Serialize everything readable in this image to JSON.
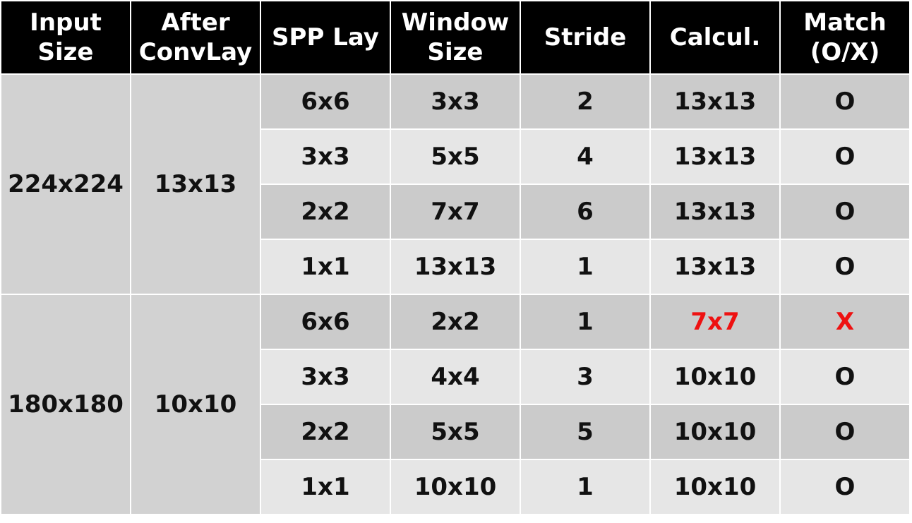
{
  "header": {
    "columns": [
      [
        "Input",
        "Size"
      ],
      [
        "After",
        "ConvLay"
      ],
      [
        "SPP Lay"
      ],
      [
        "Window",
        "Size"
      ],
      [
        "Stride"
      ],
      [
        "Calcul."
      ],
      [
        "Match",
        "(O/X)"
      ]
    ]
  },
  "groups": [
    {
      "input_size": "224x224",
      "after_convlay": "13x13",
      "rows": [
        {
          "spp_lay": "6x6",
          "window_size": "3x3",
          "stride": "2",
          "calcul": "13x13",
          "match": "O"
        },
        {
          "spp_lay": "3x3",
          "window_size": "5x5",
          "stride": "4",
          "calcul": "13x13",
          "match": "O"
        },
        {
          "spp_lay": "2x2",
          "window_size": "7x7",
          "stride": "6",
          "calcul": "13x13",
          "match": "O"
        },
        {
          "spp_lay": "1x1",
          "window_size": "13x13",
          "stride": "1",
          "calcul": "13x13",
          "match": "O"
        }
      ]
    },
    {
      "input_size": "180x180",
      "after_convlay": "10x10",
      "rows": [
        {
          "spp_lay": "6x6",
          "window_size": "2x2",
          "stride": "1",
          "calcul": "7x7",
          "match": "X"
        },
        {
          "spp_lay": "3x3",
          "window_size": "4x4",
          "stride": "3",
          "calcul": "10x10",
          "match": "O"
        },
        {
          "spp_lay": "2x2",
          "window_size": "5x5",
          "stride": "5",
          "calcul": "10x10",
          "match": "O"
        },
        {
          "spp_lay": "1x1",
          "window_size": "10x10",
          "stride": "1",
          "calcul": "10x10",
          "match": "O"
        }
      ]
    }
  ],
  "colors": {
    "header_bg": "#000000",
    "header_text": "#ffffff",
    "row_dark": "#cbcbcb",
    "row_light": "#e6e6e6",
    "group_cell": "#d2d2d2",
    "mismatch": "#ee1111"
  }
}
